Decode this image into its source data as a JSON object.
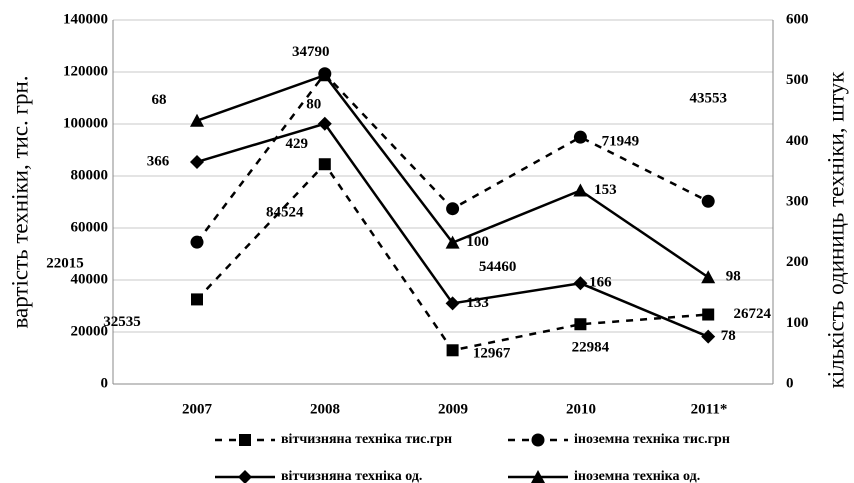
{
  "chart_data": {
    "type": "line",
    "stacked": true,
    "categories": [
      "2007",
      "2008",
      "2009",
      "2010",
      "2011*"
    ],
    "ylabel": "вартість техніки, тис. грн.",
    "y2label": "кількість одиниць техніки, штук",
    "ylim": [
      0,
      140000
    ],
    "yticks": [
      0,
      20000,
      40000,
      60000,
      80000,
      100000,
      120000,
      140000
    ],
    "y2lim": [
      0,
      600
    ],
    "y2ticks": [
      0,
      100,
      200,
      300,
      400,
      500,
      600
    ],
    "grid": true,
    "series": [
      {
        "name": "вітчизняна техніка тис.грн",
        "color": "#000000",
        "marker": "square",
        "line_style": "dashed",
        "values": [
          32535,
          84524,
          12967,
          22984,
          26724
        ]
      },
      {
        "name": "іноземна техніка тис.грн",
        "color": "#000000",
        "marker": "circle",
        "line_style": "dashed",
        "values": [
          22015,
          34790,
          54460,
          71949,
          43553
        ]
      },
      {
        "name": "вітчизняна техніка од.",
        "color": "#000000",
        "marker": "diamond",
        "line_style": "solid",
        "axis": "y2",
        "values": [
          366,
          429,
          133,
          166,
          78
        ]
      },
      {
        "name": "іноземна техніка од.",
        "color": "#000000",
        "marker": "triangle",
        "line_style": "solid",
        "axis": "y2",
        "values": [
          68,
          80,
          100,
          153,
          98
        ]
      }
    ]
  }
}
